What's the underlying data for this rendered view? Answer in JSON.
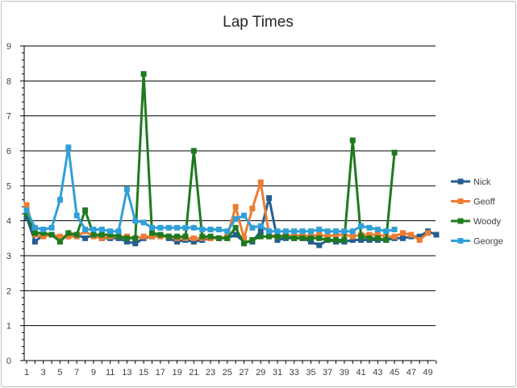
{
  "chart_data": {
    "type": "line",
    "title": "Lap Times",
    "xlabel": "",
    "ylabel": "",
    "ylim": [
      0,
      9
    ],
    "yticks": [
      "0",
      "1",
      "2",
      "3",
      "4",
      "5",
      "6",
      "7",
      "8",
      "9"
    ],
    "xticks": [
      "1",
      "3",
      "5",
      "7",
      "9",
      "11",
      "13",
      "15",
      "17",
      "19",
      "21",
      "23",
      "25",
      "27",
      "29",
      "31",
      "33",
      "35",
      "37",
      "39",
      "41",
      "43",
      "45",
      "47",
      "49"
    ],
    "grid": "horizontal",
    "legend_position": "right",
    "series": [
      {
        "name": "Nick",
        "color": "#255e91",
        "x": [
          1,
          2,
          3,
          4,
          5,
          6,
          7,
          8,
          9,
          10,
          11,
          12,
          13,
          14,
          15,
          16,
          17,
          18,
          19,
          20,
          21,
          22,
          23,
          24,
          25,
          26,
          27,
          28,
          29,
          30,
          31,
          32,
          33,
          34,
          35,
          36,
          37,
          38,
          39,
          40,
          41,
          42,
          43,
          44,
          45,
          46,
          47,
          48,
          49,
          50
        ],
        "values": [
          4.1,
          3.4,
          3.6,
          3.6,
          3.5,
          3.6,
          3.6,
          3.5,
          3.6,
          3.5,
          3.5,
          3.5,
          3.4,
          3.35,
          3.5,
          3.55,
          3.6,
          3.5,
          3.4,
          3.45,
          3.4,
          3.45,
          3.5,
          3.5,
          3.5,
          3.6,
          3.4,
          3.4,
          3.7,
          4.65,
          3.45,
          3.5,
          3.5,
          3.5,
          3.4,
          3.3,
          3.45,
          3.4,
          3.4,
          3.45,
          3.45,
          3.45,
          3.45,
          3.45,
          3.5,
          3.5,
          3.55,
          3.55,
          3.7,
          3.6
        ]
      },
      {
        "name": "Geoff",
        "color": "#ed7d31",
        "x": [
          1,
          2,
          3,
          4,
          5,
          6,
          7,
          8,
          9,
          10,
          11,
          12,
          13,
          14,
          15,
          16,
          17,
          18,
          19,
          20,
          21,
          22,
          23,
          24,
          25,
          26,
          27,
          28,
          29,
          30,
          31,
          32,
          33,
          34,
          35,
          36,
          37,
          38,
          39,
          40,
          41,
          42,
          43,
          44,
          45,
          46,
          47,
          48,
          49
        ],
        "values": [
          4.45,
          3.6,
          3.55,
          3.6,
          3.55,
          3.55,
          3.55,
          3.7,
          3.55,
          3.5,
          3.55,
          3.55,
          3.55,
          3.5,
          3.55,
          3.55,
          3.55,
          3.55,
          3.5,
          3.5,
          3.5,
          3.5,
          3.5,
          3.5,
          3.55,
          4.4,
          3.5,
          4.35,
          5.1,
          3.6,
          3.55,
          3.6,
          3.55,
          3.6,
          3.55,
          3.6,
          3.55,
          3.6,
          3.6,
          3.55,
          3.6,
          3.6,
          3.6,
          3.55,
          3.55,
          3.65,
          3.6,
          3.45,
          3.65
        ]
      },
      {
        "name": "Woody",
        "color": "#1f7a1f",
        "x": [
          1,
          2,
          3,
          4,
          5,
          6,
          7,
          8,
          9,
          10,
          11,
          12,
          13,
          14,
          15,
          16,
          17,
          18,
          19,
          20,
          21,
          22,
          23,
          24,
          25,
          26,
          27,
          28,
          29,
          30,
          31,
          32,
          33,
          34,
          35,
          36,
          37,
          38,
          39,
          40,
          41,
          42,
          43,
          44,
          45
        ],
        "values": [
          4.2,
          3.65,
          3.65,
          3.6,
          3.4,
          3.65,
          3.6,
          4.3,
          3.6,
          3.6,
          3.6,
          3.55,
          3.5,
          3.5,
          8.2,
          3.65,
          3.6,
          3.55,
          3.55,
          3.55,
          6.0,
          3.55,
          3.55,
          3.5,
          3.5,
          3.8,
          3.35,
          3.45,
          3.55,
          3.55,
          3.55,
          3.55,
          3.5,
          3.5,
          3.5,
          3.5,
          3.45,
          3.45,
          3.45,
          6.3,
          3.55,
          3.5,
          3.5,
          3.45,
          5.95
        ]
      },
      {
        "name": "George",
        "color": "#31a0d8",
        "x": [
          1,
          2,
          3,
          4,
          5,
          6,
          7,
          8,
          9,
          10,
          11,
          12,
          13,
          14,
          15,
          16,
          17,
          18,
          19,
          20,
          21,
          22,
          23,
          24,
          25,
          26,
          27,
          28,
          29,
          30,
          31,
          32,
          33,
          34,
          35,
          36,
          37,
          38,
          39,
          40,
          41,
          42,
          43,
          44,
          45
        ],
        "values": [
          4.3,
          3.8,
          3.75,
          3.8,
          4.6,
          6.1,
          4.15,
          3.75,
          3.75,
          3.75,
          3.7,
          3.7,
          4.9,
          4.0,
          3.95,
          3.8,
          3.8,
          3.8,
          3.8,
          3.8,
          3.8,
          3.75,
          3.75,
          3.75,
          3.7,
          4.05,
          4.15,
          3.8,
          3.85,
          3.7,
          3.7,
          3.7,
          3.7,
          3.7,
          3.7,
          3.75,
          3.7,
          3.7,
          3.7,
          3.7,
          3.85,
          3.8,
          3.75,
          3.7,
          3.75
        ]
      }
    ]
  }
}
